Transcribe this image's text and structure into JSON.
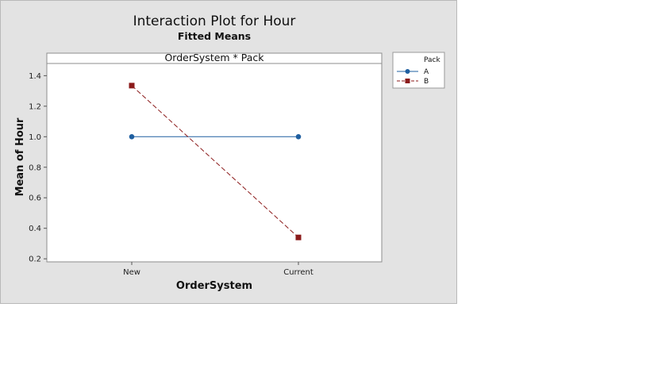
{
  "chart_data": {
    "type": "line",
    "title": "Interaction Plot for Hour",
    "subtitle": "Fitted Means",
    "panel_label": "OrderSystem * Pack",
    "xlabel": "OrderSystem",
    "ylabel": "Mean of Hour",
    "categories": [
      "New",
      "Current"
    ],
    "ylim": [
      0.18,
      1.48
    ],
    "yticks": [
      0.2,
      0.4,
      0.6,
      0.8,
      1.0,
      1.2,
      1.4
    ],
    "ytick_labels": [
      "0.2",
      "0.4",
      "0.6",
      "0.8",
      "1.0",
      "1.2",
      "1.4"
    ],
    "grid": false,
    "legend": {
      "title": "Pack",
      "placement": "right"
    },
    "series": [
      {
        "name": "A",
        "values": [
          1.0,
          1.0
        ],
        "color": "#1f5fa0",
        "marker": "circle",
        "line": "solid"
      },
      {
        "name": "B",
        "values": [
          1.335,
          0.34
        ],
        "color": "#8b1a1a",
        "marker": "square",
        "line": "dashed"
      }
    ]
  }
}
